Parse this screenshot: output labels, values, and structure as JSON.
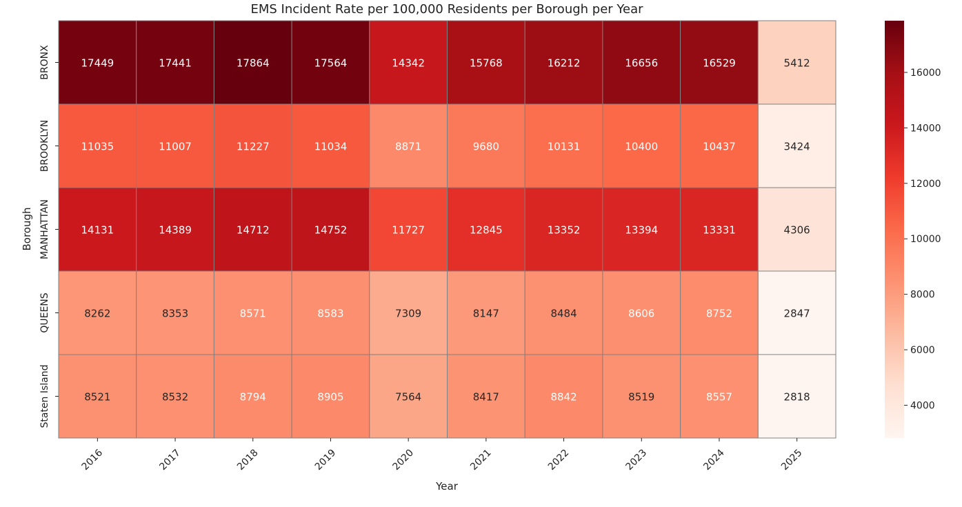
{
  "chart_data": {
    "type": "heatmap",
    "title": "EMS Incident Rate per 100,000 Residents per Borough per Year",
    "xlabel": "Year",
    "ylabel": "Borough",
    "x": [
      "2016",
      "2017",
      "2018",
      "2019",
      "2020",
      "2021",
      "2022",
      "2023",
      "2024",
      "2025"
    ],
    "y": [
      "BRONX",
      "BROOKLYN",
      "MANHATTAN",
      "QUEENS",
      "Staten Island"
    ],
    "values": [
      [
        17449,
        17441,
        17864,
        17564,
        14342,
        15768,
        16212,
        16656,
        16529,
        5412
      ],
      [
        11035,
        11007,
        11227,
        11034,
        8871,
        9680,
        10131,
        10400,
        10437,
        3424
      ],
      [
        14131,
        14389,
        14712,
        14752,
        11727,
        12845,
        13352,
        13394,
        13331,
        4306
      ],
      [
        8262,
        8353,
        8571,
        8583,
        7309,
        8147,
        8484,
        8606,
        8752,
        2847
      ],
      [
        8521,
        8532,
        8794,
        8905,
        7564,
        8417,
        8842,
        8519,
        8557,
        2818
      ]
    ],
    "colormap": "Reds",
    "colorbar": {
      "ticks": [
        "4000",
        "6000",
        "8000",
        "10000",
        "12000",
        "14000",
        "16000"
      ],
      "range": [
        2818,
        17864
      ]
    }
  }
}
